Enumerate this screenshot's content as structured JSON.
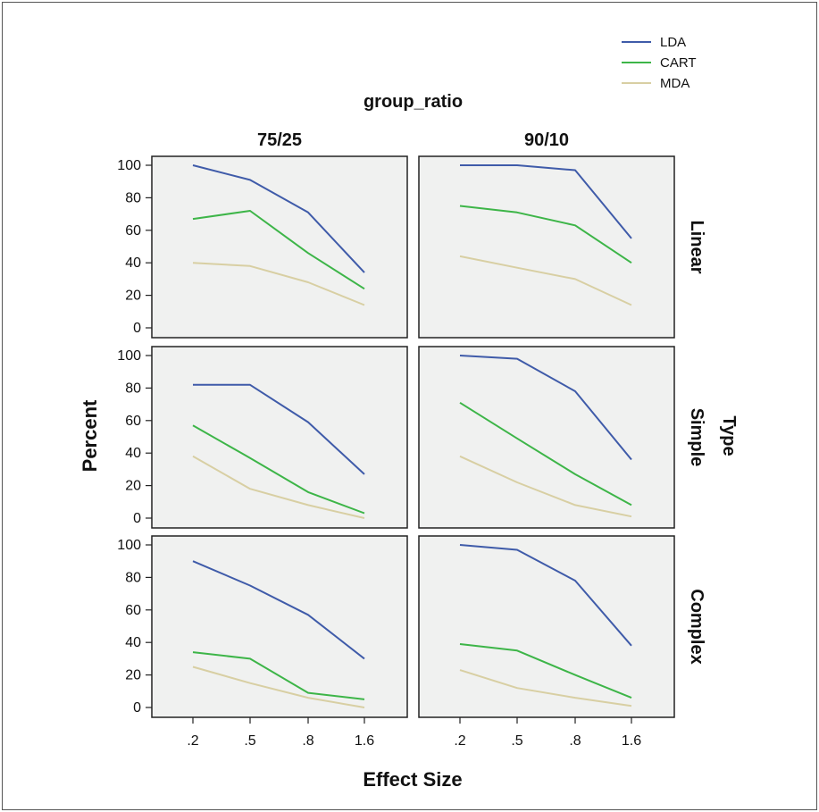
{
  "chart_data": {
    "type": "line",
    "x": [
      ".2",
      ".5",
      ".8",
      "1.6"
    ],
    "xlabel": "Effect Size",
    "ylabel": "Percent",
    "ylim": [
      0,
      100
    ],
    "yticks": [
      "0",
      "20",
      "40",
      "60",
      "80",
      "100"
    ],
    "col_facet_title": "group_ratio",
    "col_facets": [
      "75/25",
      "90/10"
    ],
    "row_facet_title": "Type",
    "row_facets": [
      "Linear",
      "Simple",
      "Complex"
    ],
    "grid": false,
    "legend_position": "top-right",
    "series": [
      {
        "name": "LDA",
        "color": "#3F5BA9"
      },
      {
        "name": "CART",
        "color": "#3DB548"
      },
      {
        "name": "MDA",
        "color": "#D8CFA3"
      }
    ],
    "panels": [
      {
        "row": "Linear",
        "col": "75/25",
        "LDA": [
          100,
          91,
          71,
          34
        ],
        "CART": [
          67,
          72,
          46,
          24
        ],
        "MDA": [
          40,
          38,
          28,
          14
        ]
      },
      {
        "row": "Linear",
        "col": "90/10",
        "LDA": [
          100,
          100,
          97,
          55
        ],
        "CART": [
          75,
          71,
          63,
          40
        ],
        "MDA": [
          44,
          37,
          30,
          14
        ]
      },
      {
        "row": "Simple",
        "col": "75/25",
        "LDA": [
          82,
          82,
          59,
          27
        ],
        "CART": [
          57,
          37,
          16,
          3
        ],
        "MDA": [
          38,
          18,
          8,
          0
        ]
      },
      {
        "row": "Simple",
        "col": "90/10",
        "LDA": [
          100,
          98,
          78,
          36
        ],
        "CART": [
          71,
          49,
          27,
          8
        ],
        "MDA": [
          38,
          22,
          8,
          1
        ]
      },
      {
        "row": "Complex",
        "col": "75/25",
        "LDA": [
          90,
          75,
          57,
          30
        ],
        "CART": [
          34,
          30,
          9,
          5
        ],
        "MDA": [
          25,
          15,
          6,
          0
        ]
      },
      {
        "row": "Complex",
        "col": "90/10",
        "LDA": [
          100,
          97,
          78,
          38
        ],
        "CART": [
          39,
          35,
          20,
          6
        ],
        "MDA": [
          23,
          12,
          6,
          1
        ]
      }
    ]
  }
}
